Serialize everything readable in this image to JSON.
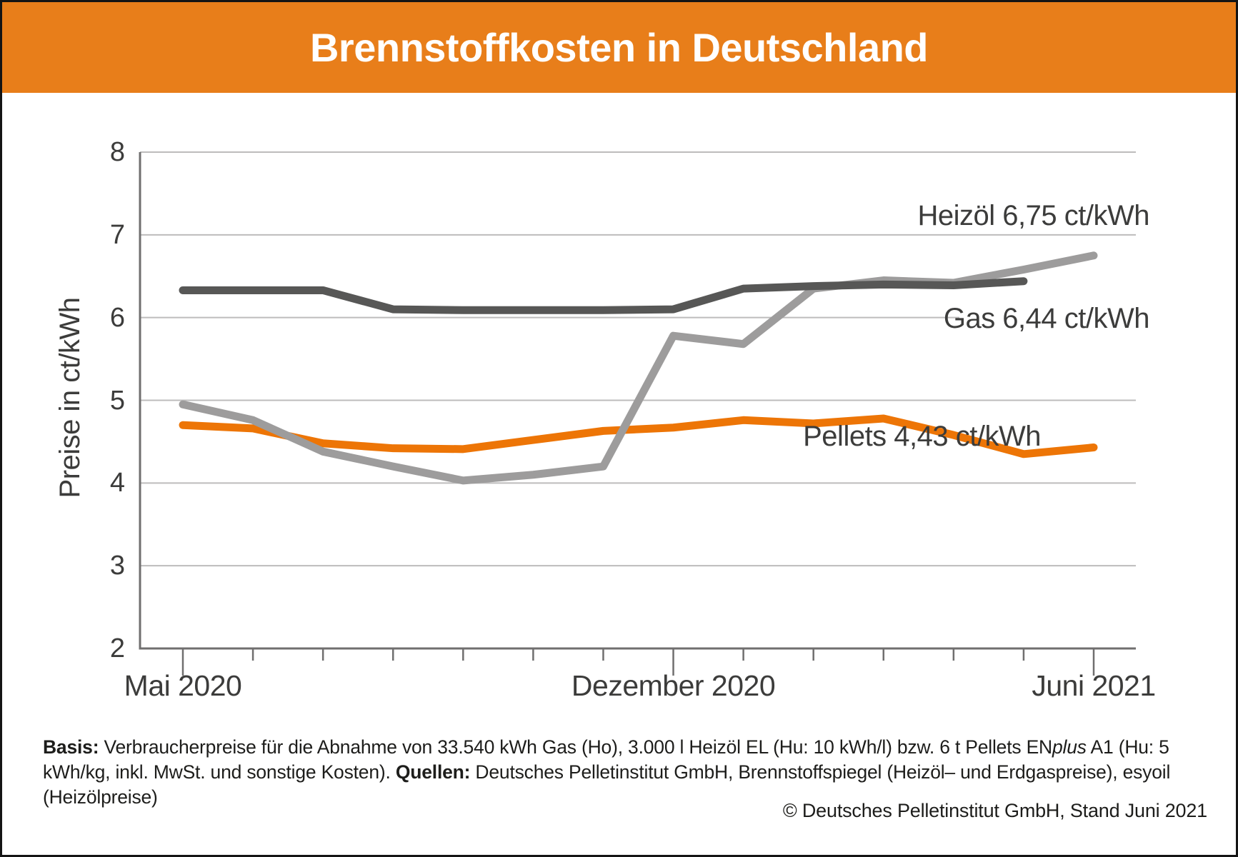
{
  "header": {
    "title": "Brennstoffkosten in Deutschland",
    "background_color": "#E87E1A",
    "text_color": "#FFFFFF"
  },
  "chart_data": {
    "type": "line",
    "title": "Brennstoffkosten in Deutschland",
    "ylabel": "Preise in ct/kWh",
    "unit": "ct/kWh",
    "ylim": [
      2,
      8
    ],
    "yticks": [
      2,
      3,
      4,
      5,
      6,
      7,
      8
    ],
    "grid": "horizontal",
    "x_tick_count": 14,
    "x_labeled_ticks": [
      {
        "index": 0,
        "label": "Mai 2020"
      },
      {
        "index": 7,
        "label": "Dezember 2020"
      },
      {
        "index": 13,
        "label": "Juni 2021"
      }
    ],
    "colors": {
      "grid": "#BDBCBC",
      "axis": "#706F6F",
      "text": "#3C3C3B"
    },
    "series": [
      {
        "name": "Pellets",
        "color": "#ED7506",
        "latest_value": 4.43,
        "values": [
          4.7,
          4.66,
          4.48,
          4.42,
          4.41,
          4.52,
          4.63,
          4.67,
          4.76,
          4.72,
          4.78,
          4.58,
          4.35,
          4.43
        ]
      },
      {
        "name": "Heizöl",
        "color": "#9D9C9C",
        "latest_value": 6.75,
        "values": [
          4.95,
          4.76,
          4.38,
          4.2,
          4.03,
          4.1,
          4.2,
          5.78,
          5.68,
          6.35,
          6.45,
          6.42,
          6.58,
          6.75
        ]
      },
      {
        "name": "Gas",
        "color": "#575756",
        "latest_value": 6.44,
        "values": [
          6.33,
          6.33,
          6.33,
          6.1,
          6.09,
          6.09,
          6.09,
          6.1,
          6.35,
          6.38,
          6.4,
          6.39,
          6.44,
          null
        ]
      }
    ],
    "annotations": [
      {
        "series": "Heizöl",
        "text": "Heizöl 6,75 ct/kWh"
      },
      {
        "series": "Gas",
        "text": "Gas 6,44 ct/kWh"
      },
      {
        "series": "Pellets",
        "text": "Pellets 4,43 ct/kWh"
      }
    ]
  },
  "footer": {
    "basis_label": "Basis:",
    "basis_text": " Verbraucherpreise für die Abnahme von 33.540 kWh Gas (Ho), 3.000 l Heizöl EL (Hu: 10 kWh/l) bzw. 6 t Pellets EN",
    "enplus_italic": "plus",
    "basis_text_2": " A1 (Hu: 5 kWh/kg, inkl. MwSt. und sonstige Kosten). ",
    "quellen_label": "Quellen:",
    "quellen_text": " Deutsches Pelletinstitut GmbH, Brennstoffspiegel (Heizöl– und Erdgaspreise), esyoil (Heizölpreise)",
    "copyright": "© Deutsches Pelletinstitut GmbH, Stand Juni 2021"
  }
}
